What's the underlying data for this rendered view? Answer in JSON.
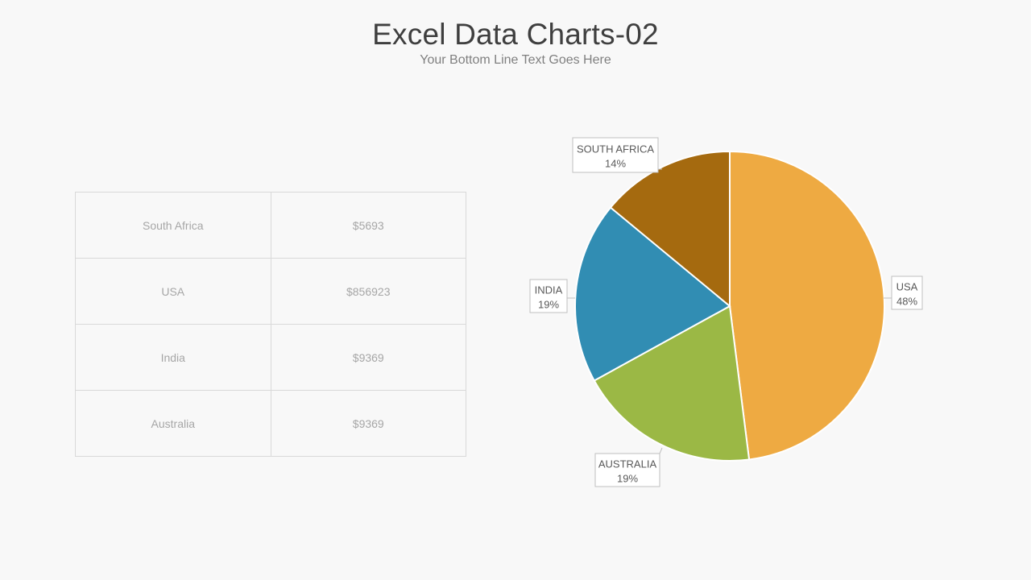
{
  "slide": {
    "title": "Excel Data Charts-02",
    "subtitle": "Your Bottom Line Text Goes Here"
  },
  "table": {
    "rows": [
      {
        "country": "South Africa",
        "value": "$5693"
      },
      {
        "country": "USA",
        "value": "$856923"
      },
      {
        "country": "India",
        "value": "$9369"
      },
      {
        "country": "Australia",
        "value": "$9369"
      }
    ]
  },
  "chart_data": {
    "type": "pie",
    "categories": [
      "USA",
      "AUSTRALIA",
      "INDIA",
      "SOUTH AFRICA"
    ],
    "values": [
      48,
      19,
      19,
      14
    ],
    "labels": [
      "48%",
      "19%",
      "19%",
      "14%"
    ],
    "colors": [
      "#eeaa42",
      "#9bb845",
      "#318db3",
      "#a56a0f"
    ],
    "start_angle_deg": 0,
    "direction": "clockwise",
    "legend": "none",
    "data_labels": "callouts"
  }
}
